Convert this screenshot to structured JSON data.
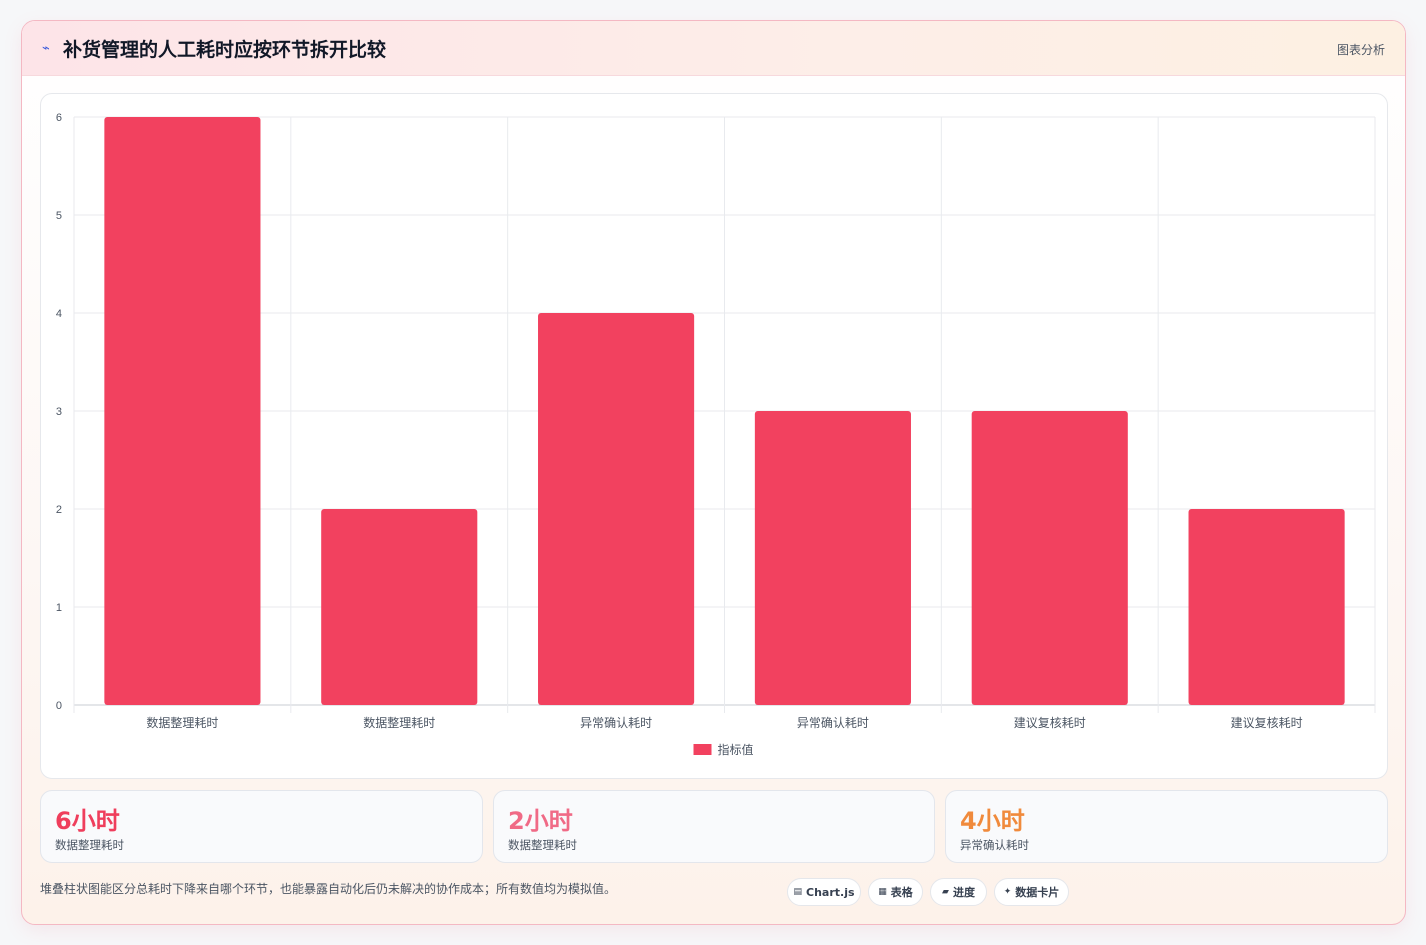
{
  "header": {
    "title": "补货管理的人工耗时应按环节拆开比较",
    "tag": "图表分析",
    "icon": "sparkline-icon"
  },
  "chart_data": {
    "type": "bar",
    "categories": [
      "数据整理耗时",
      "数据整理耗时",
      "异常确认耗时",
      "异常确认耗时",
      "建议复核耗时",
      "建议复核耗时"
    ],
    "series": [
      {
        "name": "指标值",
        "values": [
          6,
          2,
          4,
          3,
          3,
          2
        ]
      }
    ],
    "ylim": [
      0,
      6
    ],
    "yticks": [
      "0",
      "1",
      "2",
      "3",
      "4",
      "5",
      "6"
    ],
    "grid": true,
    "legend": "bottom",
    "bar_color": "#f2415f"
  },
  "stats": [
    {
      "value": "6小时",
      "label": "数据整理耗时",
      "color": "#ef3e5c"
    },
    {
      "value": "2小时",
      "label": "数据整理耗时",
      "color": "#f06a86"
    },
    {
      "value": "4小时",
      "label": "异常确认耗时",
      "color": "#f08a3c"
    }
  ],
  "footnote": "堆叠柱状图能区分总耗时下降来自哪个环节，也能暴露自动化后仍未解决的协作成本；所有数值均为模拟值。",
  "pills": [
    {
      "icon": "▤",
      "label": "Chart.js"
    },
    {
      "icon": "▦",
      "label": "表格"
    },
    {
      "icon": "▰",
      "label": "进度"
    },
    {
      "icon": "✦",
      "label": "数据卡片"
    }
  ]
}
